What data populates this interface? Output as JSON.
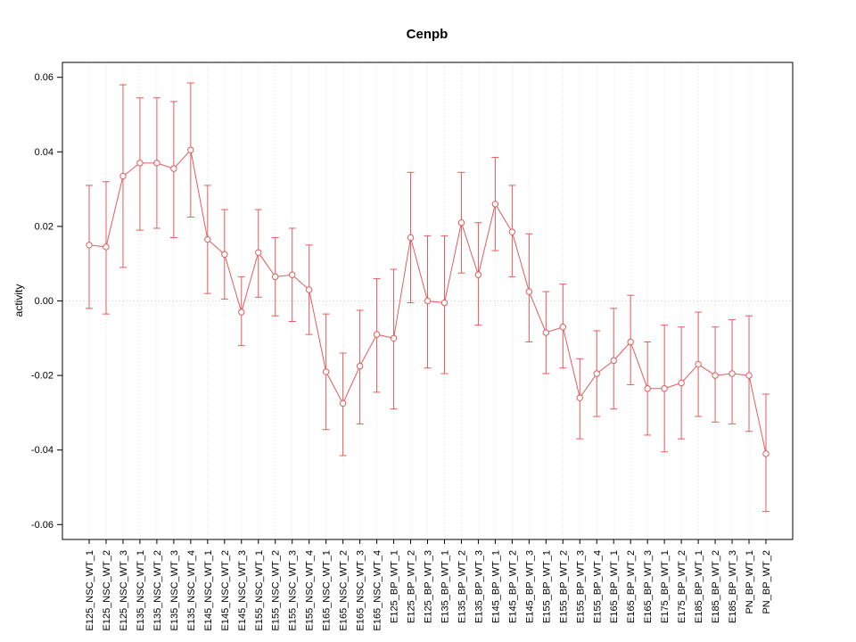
{
  "chart_data": {
    "type": "line",
    "title": "Cenpb",
    "xlabel": "",
    "ylabel": "activity",
    "ylim": [
      -0.06,
      0.06
    ],
    "yticks": [
      -0.06,
      -0.04,
      -0.02,
      0.0,
      0.02,
      0.04,
      0.06
    ],
    "grid": "vertical-dotted-per-category-plus-dotted-zero-line",
    "legend": "none",
    "marker": "open-circle",
    "error_bars": true,
    "series_color": "#e45c5c",
    "grid_color": "#dcdcdc",
    "categories": [
      "E125_NSC_WT_1",
      "E125_NSC_WT_2",
      "E125_NSC_WT_3",
      "E135_NSC_WT_1",
      "E135_NSC_WT_2",
      "E135_NSC_WT_3",
      "E135_NSC_WT_4",
      "E145_NSC_WT_1",
      "E145_NSC_WT_2",
      "E145_NSC_WT_3",
      "E155_NSC_WT_1",
      "E155_NSC_WT_2",
      "E155_NSC_WT_3",
      "E155_NSC_WT_4",
      "E165_NSC_WT_1",
      "E165_NSC_WT_2",
      "E165_NSC_WT_3",
      "E165_NSC_WT_4",
      "E125_BP_WT_1",
      "E125_BP_WT_2",
      "E125_BP_WT_3",
      "E135_BP_WT_1",
      "E135_BP_WT_2",
      "E135_BP_WT_3",
      "E145_BP_WT_1",
      "E145_BP_WT_2",
      "E145_BP_WT_3",
      "E155_BP_WT_1",
      "E155_BP_WT_2",
      "E155_BP_WT_3",
      "E155_BP_WT_4",
      "E165_BP_WT_1",
      "E165_BP_WT_2",
      "E165_BP_WT_3",
      "E175_BP_WT_1",
      "E175_BP_WT_2",
      "E185_BP_WT_1",
      "E185_BP_WT_2",
      "E185_BP_WT_3",
      "PN_BP_WT_1",
      "PN_BP_WT_2"
    ],
    "values": [
      0.015,
      0.0145,
      0.0335,
      0.037,
      0.037,
      0.0355,
      0.0405,
      0.0165,
      0.0125,
      -0.003,
      0.013,
      0.0065,
      0.007,
      0.003,
      -0.019,
      -0.0275,
      -0.0175,
      -0.009,
      -0.01,
      0.017,
      0.0,
      -0.0005,
      0.021,
      0.007,
      0.026,
      0.0185,
      0.0025,
      -0.0085,
      -0.007,
      -0.026,
      -0.0195,
      -0.016,
      -0.011,
      -0.0235,
      -0.0235,
      -0.022,
      -0.017,
      -0.02,
      -0.0195,
      -0.02,
      -0.041
    ],
    "error_low": [
      -0.002,
      -0.0035,
      0.009,
      0.019,
      0.0195,
      0.017,
      0.0225,
      0.002,
      0.0005,
      -0.012,
      0.001,
      -0.004,
      -0.0055,
      -0.009,
      -0.0345,
      -0.0415,
      -0.033,
      -0.0245,
      -0.029,
      -0.0005,
      -0.018,
      -0.0195,
      0.0075,
      -0.0065,
      0.0135,
      0.0065,
      -0.011,
      -0.0195,
      -0.018,
      -0.037,
      -0.031,
      -0.029,
      -0.0225,
      -0.036,
      -0.0405,
      -0.037,
      -0.031,
      -0.0325,
      -0.033,
      -0.035,
      -0.0565
    ],
    "error_high": [
      0.031,
      0.032,
      0.058,
      0.0545,
      0.0545,
      0.0535,
      0.0585,
      0.031,
      0.0245,
      0.0065,
      0.0245,
      0.017,
      0.0195,
      0.015,
      -0.0035,
      -0.014,
      -0.0025,
      0.006,
      0.0085,
      0.0345,
      0.0175,
      0.0175,
      0.0345,
      0.021,
      0.0385,
      0.031,
      0.018,
      0.0025,
      0.0045,
      -0.0155,
      -0.008,
      -0.002,
      0.0015,
      -0.011,
      -0.0065,
      -0.007,
      -0.003,
      -0.007,
      -0.005,
      -0.004,
      -0.025
    ]
  }
}
